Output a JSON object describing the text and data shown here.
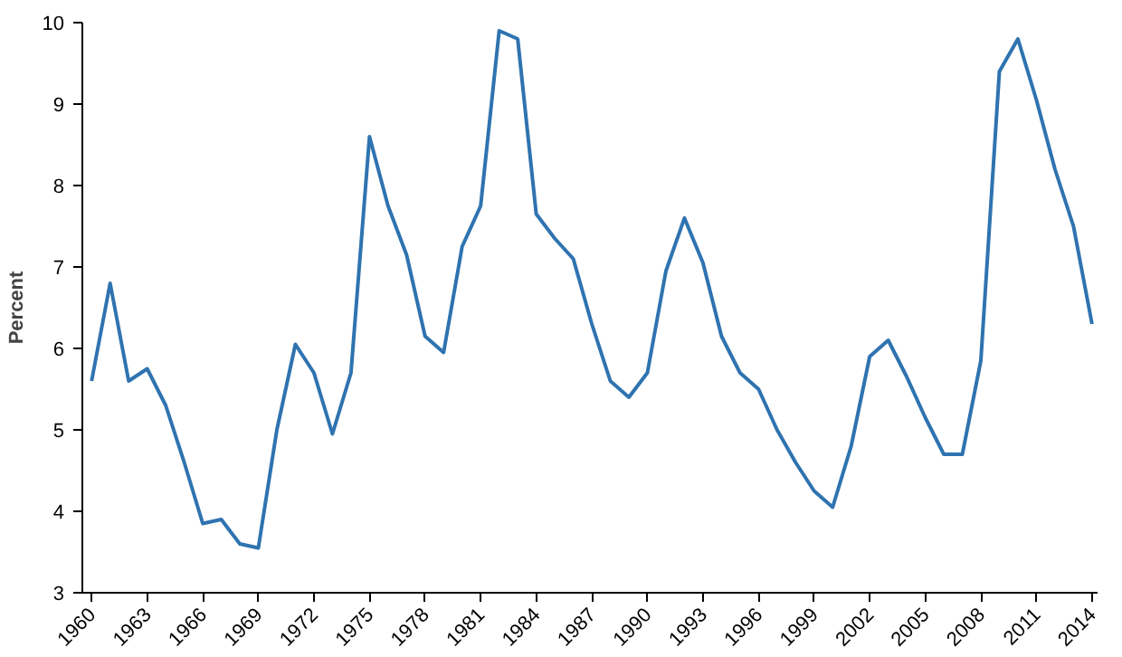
{
  "chart_data": {
    "type": "line",
    "ylabel": "Percent",
    "x": [
      1960,
      1961,
      1962,
      1963,
      1964,
      1965,
      1966,
      1967,
      1968,
      1969,
      1970,
      1971,
      1972,
      1973,
      1974,
      1975,
      1976,
      1977,
      1978,
      1979,
      1980,
      1981,
      1982,
      1983,
      1984,
      1985,
      1986,
      1987,
      1988,
      1989,
      1990,
      1991,
      1992,
      1993,
      1994,
      1995,
      1996,
      1997,
      1998,
      1999,
      2000,
      2001,
      2002,
      2003,
      2004,
      2005,
      2006,
      2007,
      2008,
      2009,
      2010,
      2011,
      2012,
      2013,
      2014
    ],
    "series": [
      {
        "color": "#2f73b0",
        "values": [
          5.6,
          6.8,
          5.6,
          5.75,
          5.3,
          4.6,
          3.85,
          3.9,
          3.6,
          3.55,
          5.0,
          6.05,
          5.7,
          4.95,
          5.7,
          8.6,
          7.75,
          7.15,
          6.15,
          5.95,
          7.25,
          7.75,
          9.9,
          9.8,
          7.65,
          7.35,
          7.1,
          6.3,
          5.6,
          5.4,
          5.7,
          6.95,
          7.6,
          7.05,
          6.15,
          5.7,
          5.5,
          5.0,
          4.6,
          4.25,
          4.05,
          4.8,
          5.9,
          6.1,
          5.65,
          5.15,
          4.7,
          4.7,
          5.85,
          9.4,
          9.8,
          9.05,
          8.2,
          7.5,
          6.3
        ]
      }
    ],
    "xlim": [
      1959.5,
      2014.3
    ],
    "ylim": [
      3,
      10
    ],
    "xticks": [
      1960,
      1963,
      1966,
      1969,
      1972,
      1975,
      1978,
      1981,
      1984,
      1987,
      1990,
      1993,
      1996,
      1999,
      2002,
      2005,
      2008,
      2011,
      2014
    ],
    "yticks": [
      3,
      4,
      5,
      6,
      7,
      8,
      9,
      10
    ],
    "grid": false,
    "marker": "none",
    "line_style": "solid"
  }
}
